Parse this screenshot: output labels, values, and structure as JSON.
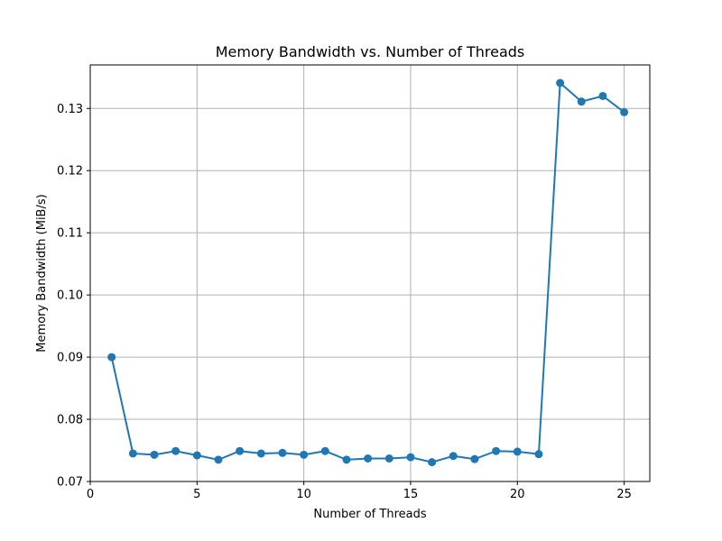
{
  "chart_data": {
    "type": "line",
    "title": "Memory Bandwidth vs. Number of Threads",
    "xlabel": "Number of Threads",
    "ylabel": "Memory Bandwidth (MiB/s)",
    "xlim": [
      0,
      26.2
    ],
    "ylim": [
      0.07,
      0.137
    ],
    "xticks": [
      0,
      5,
      10,
      15,
      20,
      25
    ],
    "xtick_labels": [
      "0",
      "5",
      "10",
      "15",
      "20",
      "25"
    ],
    "yticks": [
      0.07,
      0.08,
      0.09,
      0.1,
      0.11,
      0.12,
      0.13
    ],
    "ytick_labels": [
      "0.07",
      "0.08",
      "0.09",
      "0.10",
      "0.11",
      "0.12",
      "0.13"
    ],
    "grid": true,
    "series": [
      {
        "color": "#1f77b4",
        "marker": "circle",
        "x": [
          1,
          2,
          3,
          4,
          5,
          6,
          7,
          8,
          9,
          10,
          11,
          12,
          13,
          14,
          15,
          16,
          17,
          18,
          19,
          20,
          21,
          22,
          23,
          24,
          25
        ],
        "y": [
          0.09,
          0.0745,
          0.0743,
          0.0749,
          0.0742,
          0.0735,
          0.0749,
          0.0745,
          0.0746,
          0.0743,
          0.0749,
          0.0735,
          0.0737,
          0.0737,
          0.0739,
          0.0731,
          0.0741,
          0.0736,
          0.0749,
          0.0748,
          0.0744,
          0.1341,
          0.1311,
          0.132,
          0.1294
        ]
      }
    ]
  }
}
